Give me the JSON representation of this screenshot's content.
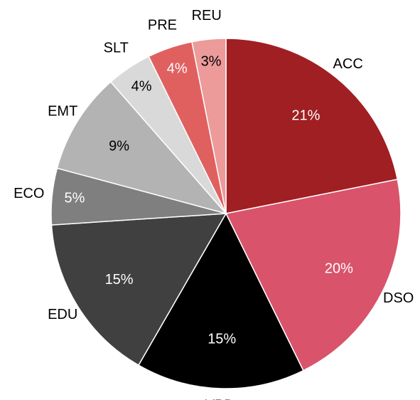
{
  "chart_data": {
    "type": "pie",
    "categories": [
      "ACC",
      "DSO",
      "VPD",
      "EDU",
      "ECO",
      "EMT",
      "SLT",
      "PRE",
      "REU"
    ],
    "values": [
      21,
      20,
      15,
      15,
      5,
      9,
      4,
      4,
      3
    ],
    "value_labels": [
      "21%",
      "20%",
      "15%",
      "15%",
      "5%",
      "9%",
      "4%",
      "4%",
      "3%"
    ],
    "colors": [
      "#a01f22",
      "#d9536b",
      "#000000",
      "#404040",
      "#7f7f7f",
      "#b3b3b3",
      "#d9d9d9",
      "#e06060",
      "#ec9a9a"
    ]
  }
}
